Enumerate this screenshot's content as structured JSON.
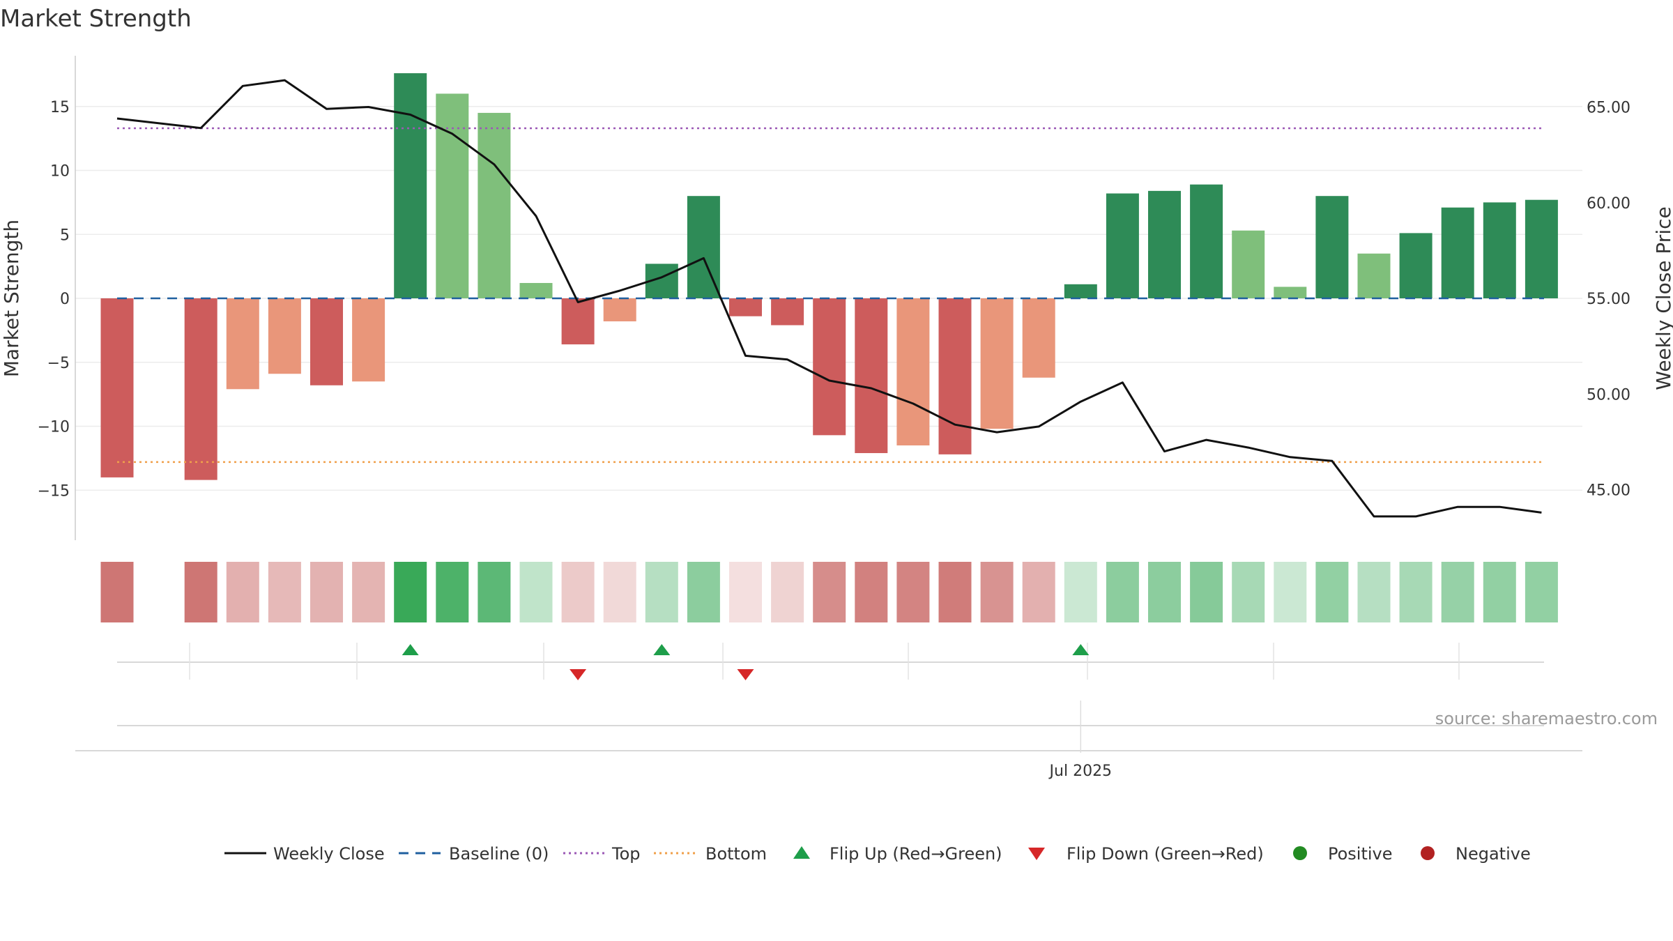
{
  "chart_data": {
    "type": "bar",
    "title": "Market Strength",
    "ylabel_left": "Market Strength",
    "ylabel_right": "Weekly Close Price",
    "ylim_left": [
      -19,
      19
    ],
    "ylim_right": [
      42.5,
      67.2
    ],
    "yticks_left": [
      15,
      10,
      5,
      0,
      -5,
      -10,
      -15
    ],
    "yticks_left_labels": [
      "15",
      "10",
      "5",
      "0",
      "−5",
      "−10",
      "−15"
    ],
    "yticks_right": [
      65,
      60,
      55,
      50,
      45
    ],
    "yticks_right_labels": [
      "65.00",
      "60.00",
      "55.00",
      "50.00",
      "45.00"
    ],
    "x_tick_label": "Jul 2025",
    "x_tick_index": 23,
    "source": "source: sharemaestro.com",
    "top_line": 13.3,
    "bottom_line": -12.8,
    "colors": {
      "strong_positive": "#2e8b57",
      "weak_positive": "#7fbf7b",
      "strong_negative": "#cd5c5c",
      "weak_negative": "#e9967a",
      "weekly_close": "#111111",
      "baseline": "#1f5f9f",
      "top": "#9b59b6",
      "bottom": "#f0a04b",
      "flip_up": "#1e9e4a",
      "flip_down": "#d62728",
      "positive": "#228b22",
      "negative": "#b22222"
    },
    "strength": [
      -14.0,
      null,
      -14.2,
      -7.1,
      -5.9,
      -6.8,
      -6.5,
      17.6,
      16.0,
      14.5,
      1.2,
      -3.6,
      -1.8,
      2.7,
      8.0,
      -1.4,
      -2.1,
      -10.7,
      -12.1,
      -11.5,
      -12.2,
      -10.2,
      -6.2,
      1.1,
      8.2,
      8.4,
      8.9,
      5.3,
      0.9,
      8.0,
      3.5,
      5.1,
      7.1,
      7.5,
      7.7
    ],
    "bar_strength_class": [
      "strong",
      null,
      "strong",
      "weak",
      "weak",
      "strong",
      "weak",
      "strong",
      "weak",
      "weak",
      "weak",
      "strong",
      "weak",
      "strong",
      "strong",
      "strong",
      "strong",
      "strong",
      "strong",
      "weak",
      "strong",
      "weak",
      "weak",
      "strong",
      "strong",
      "strong",
      "strong",
      "weak",
      "weak",
      "strong",
      "weak",
      "strong",
      "strong",
      "strong",
      "strong"
    ],
    "weekly_close": [
      64.4,
      null,
      63.9,
      66.1,
      66.4,
      64.9,
      65.0,
      64.6,
      63.6,
      62.0,
      59.3,
      54.8,
      55.4,
      56.1,
      57.1,
      52.0,
      51.8,
      50.7,
      50.3,
      49.5,
      48.4,
      48.0,
      48.3,
      49.6,
      50.6,
      47.0,
      47.6,
      47.2,
      46.7,
      46.5,
      43.6,
      43.6,
      44.1,
      44.1,
      43.8
    ],
    "heat_strip_opacity": [
      0.78,
      0,
      0.78,
      0.45,
      0.4,
      0.44,
      0.43,
      0.95,
      0.85,
      0.78,
      0.3,
      0.3,
      0.22,
      0.35,
      0.55,
      0.18,
      0.25,
      0.65,
      0.72,
      0.7,
      0.75,
      0.62,
      0.45,
      0.25,
      0.55,
      0.55,
      0.58,
      0.42,
      0.25,
      0.52,
      0.35,
      0.42,
      0.5,
      0.52,
      0.52
    ],
    "flip_up_indices": [
      7,
      13,
      23
    ],
    "flip_down_indices": [
      11,
      15
    ],
    "legend": [
      {
        "label": "Weekly Close",
        "symbol": "line"
      },
      {
        "label": "Baseline (0)",
        "symbol": "dash"
      },
      {
        "label": "Top",
        "symbol": "dot-purple"
      },
      {
        "label": "Bottom",
        "symbol": "dot-orange"
      },
      {
        "label": "Flip Up (Red→Green)",
        "symbol": "triangle-up"
      },
      {
        "label": "Flip Down (Green→Red)",
        "symbol": "triangle-down"
      },
      {
        "label": "Positive",
        "symbol": "circle-green"
      },
      {
        "label": "Negative",
        "symbol": "circle-red"
      }
    ]
  }
}
